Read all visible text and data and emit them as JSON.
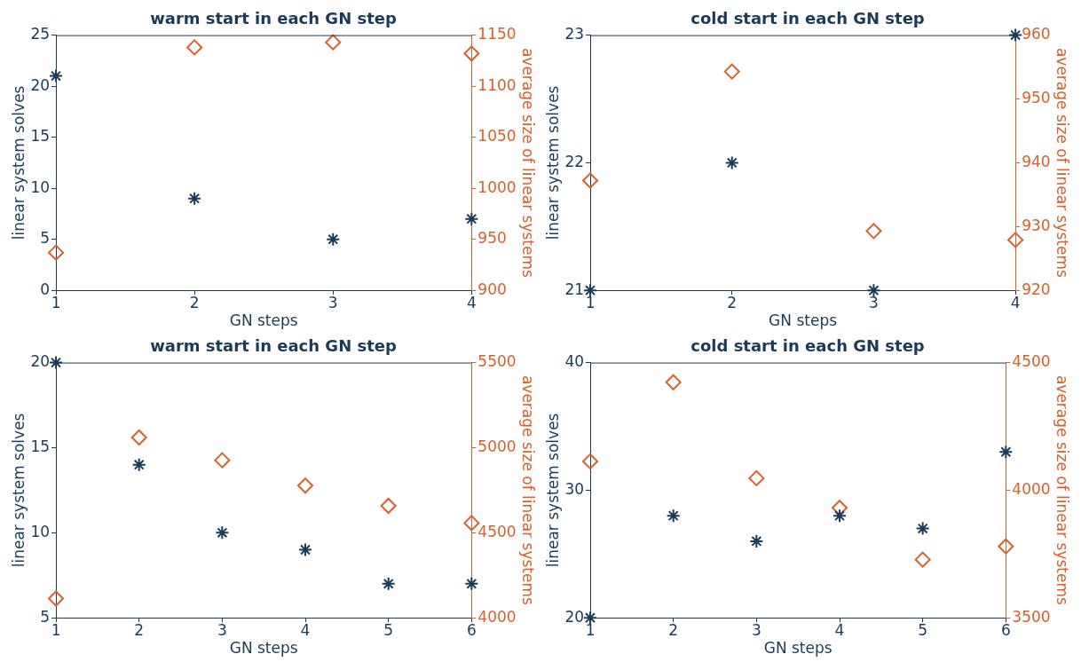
{
  "chart_data": [
    {
      "type": "scatter",
      "title": "warm start in each GN step",
      "xlabel": "GN steps",
      "ylabel": "linear system solves",
      "y2label": "average size of linear systems",
      "x": [
        1,
        2,
        3,
        4
      ],
      "xlim": [
        1,
        4
      ],
      "xticks": [
        1,
        2,
        3,
        4
      ],
      "ylim": [
        0,
        25
      ],
      "yticks": [
        0,
        5,
        10,
        15,
        20,
        25
      ],
      "y2lim": [
        900,
        1150
      ],
      "y2ticks": [
        900,
        950,
        1000,
        1050,
        1100,
        1150
      ],
      "series": [
        {
          "color": "#1b3a57",
          "marker": "cross",
          "values": [
            21,
            9,
            5,
            7
          ]
        },
        {
          "color": "#d95f2b",
          "marker": "diamond",
          "axis": "y2",
          "values": [
            937,
            1138,
            1143,
            1132
          ]
        }
      ]
    },
    {
      "type": "scatter",
      "title": "cold start in each GN step",
      "xlabel": "GN steps",
      "ylabel": "linear system solves",
      "y2label": "average size of linear systems",
      "x": [
        1,
        2,
        3,
        4
      ],
      "xlim": [
        1,
        4
      ],
      "xticks": [
        1,
        2,
        3,
        4
      ],
      "ylim": [
        21,
        23
      ],
      "yticks": [
        21,
        22,
        23
      ],
      "y2lim": [
        920,
        960
      ],
      "y2ticks": [
        920,
        930,
        940,
        950,
        960
      ],
      "series": [
        {
          "color": "#1b3a57",
          "marker": "cross",
          "values": [
            21,
            22,
            21,
            23
          ]
        },
        {
          "color": "#d95f2b",
          "marker": "diamond",
          "axis": "y2",
          "values": [
            937.2,
            954.3,
            929.3,
            927.9
          ]
        }
      ]
    },
    {
      "type": "scatter",
      "title": "warm start in each GN step",
      "xlabel": "GN steps",
      "ylabel": "linear system solves",
      "y2label": "average size of linear systems",
      "x": [
        1,
        2,
        3,
        4,
        5,
        6
      ],
      "xlim": [
        1,
        6
      ],
      "xticks": [
        1,
        2,
        3,
        4,
        5,
        6
      ],
      "ylim": [
        5,
        20
      ],
      "yticks": [
        5,
        10,
        15,
        20
      ],
      "y2lim": [
        4000,
        5500
      ],
      "y2ticks": [
        4000,
        4500,
        5000,
        5500
      ],
      "series": [
        {
          "color": "#1b3a57",
          "marker": "cross",
          "values": [
            20,
            14,
            10,
            9,
            7,
            7
          ]
        },
        {
          "color": "#d95f2b",
          "marker": "diamond",
          "axis": "y2",
          "values": [
            4113,
            5060,
            4926,
            4777,
            4658,
            4557
          ]
        }
      ]
    },
    {
      "type": "scatter",
      "title": "cold start in each GN step",
      "xlabel": "GN steps",
      "ylabel": "linear system solves",
      "y2label": "average size of linear systems",
      "x": [
        1,
        2,
        3,
        4,
        5,
        6
      ],
      "xlim": [
        1,
        6
      ],
      "xticks": [
        1,
        2,
        3,
        4,
        5,
        6
      ],
      "ylim": [
        20,
        40
      ],
      "yticks": [
        20,
        30,
        40
      ],
      "y2lim": [
        3500,
        4500
      ],
      "y2ticks": [
        3500,
        4000,
        4500
      ],
      "series": [
        {
          "color": "#1b3a57",
          "marker": "cross",
          "values": [
            20,
            28,
            26,
            28,
            27,
            33
          ]
        },
        {
          "color": "#d95f2b",
          "marker": "diamond",
          "axis": "y2",
          "values": [
            4113,
            4423,
            4047,
            3931,
            3728,
            3780
          ]
        }
      ]
    }
  ]
}
